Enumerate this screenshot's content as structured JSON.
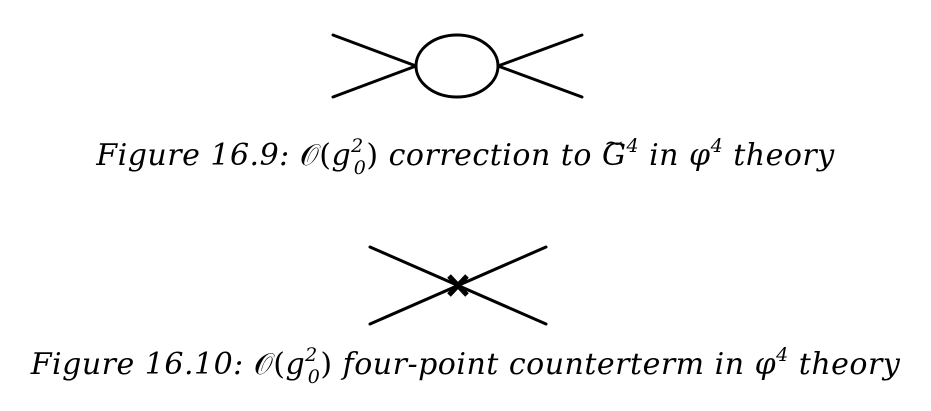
{
  "figures": [
    {
      "caption": {
        "label": "Figure 16.9:",
        "order_symbol": "𝒪",
        "coupling_base": "g",
        "coupling_sup": "2",
        "coupling_sub": "0",
        "text_mid": "correction to",
        "function_symbol": "G",
        "function_tilde": "~",
        "function_power": "4",
        "text_in": "in",
        "theory_symbol": "φ",
        "theory_power": "4",
        "text_end": "theory"
      }
    },
    {
      "caption": {
        "label": "Figure 16.10:",
        "order_symbol": "𝒪",
        "coupling_base": "g",
        "coupling_sup": "2",
        "coupling_sub": "0",
        "text_mid": "four-point counterterm in",
        "theory_symbol": "φ",
        "theory_power": "4",
        "text_end": "theory"
      }
    }
  ]
}
